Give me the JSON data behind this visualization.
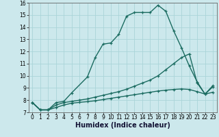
{
  "title": "",
  "xlabel": "Humidex (Indice chaleur)",
  "xlim": [
    -0.5,
    23.5
  ],
  "ylim": [
    7,
    16
  ],
  "bg_color": "#cce8ec",
  "line_color": "#1a6b60",
  "grid_color": "#aad4d8",
  "line1_x": [
    0,
    1,
    2,
    3,
    4,
    5,
    7,
    8,
    9,
    10,
    11,
    12,
    13,
    14,
    15,
    16,
    17,
    18,
    19,
    20,
    21,
    22,
    23
  ],
  "line1_y": [
    7.8,
    7.2,
    7.2,
    7.8,
    7.9,
    8.6,
    9.9,
    11.5,
    12.6,
    12.7,
    13.4,
    14.9,
    15.2,
    15.2,
    15.2,
    15.8,
    15.3,
    13.7,
    12.3,
    10.8,
    9.5,
    8.5,
    9.2
  ],
  "line2_x": [
    0,
    1,
    2,
    3,
    4,
    5,
    6,
    7,
    8,
    9,
    10,
    11,
    12,
    13,
    14,
    15,
    16,
    17,
    18,
    19,
    20,
    21,
    22,
    23
  ],
  "line2_y": [
    7.8,
    7.2,
    7.2,
    7.6,
    7.8,
    7.9,
    8.0,
    8.1,
    8.25,
    8.4,
    8.55,
    8.7,
    8.9,
    9.15,
    9.4,
    9.65,
    10.0,
    10.5,
    11.0,
    11.5,
    11.8,
    9.4,
    8.5,
    9.1
  ],
  "line3_x": [
    0,
    1,
    2,
    3,
    4,
    5,
    6,
    7,
    8,
    9,
    10,
    11,
    12,
    13,
    14,
    15,
    16,
    17,
    18,
    19,
    20,
    21,
    22,
    23
  ],
  "line3_y": [
    7.8,
    7.2,
    7.2,
    7.4,
    7.6,
    7.75,
    7.82,
    7.88,
    7.95,
    8.05,
    8.15,
    8.25,
    8.35,
    8.45,
    8.55,
    8.65,
    8.75,
    8.82,
    8.88,
    8.92,
    8.88,
    8.7,
    8.5,
    8.65
  ],
  "xticks": [
    0,
    1,
    2,
    3,
    4,
    5,
    6,
    7,
    8,
    9,
    10,
    11,
    12,
    13,
    14,
    15,
    16,
    17,
    18,
    19,
    20,
    21,
    22,
    23
  ],
  "yticks": [
    7,
    8,
    9,
    10,
    11,
    12,
    13,
    14,
    15,
    16
  ],
  "marker": "+",
  "markersize": 3.5,
  "linewidth": 1.0,
  "fontsize_ticks": 5.5,
  "fontsize_xlabel": 7.0
}
